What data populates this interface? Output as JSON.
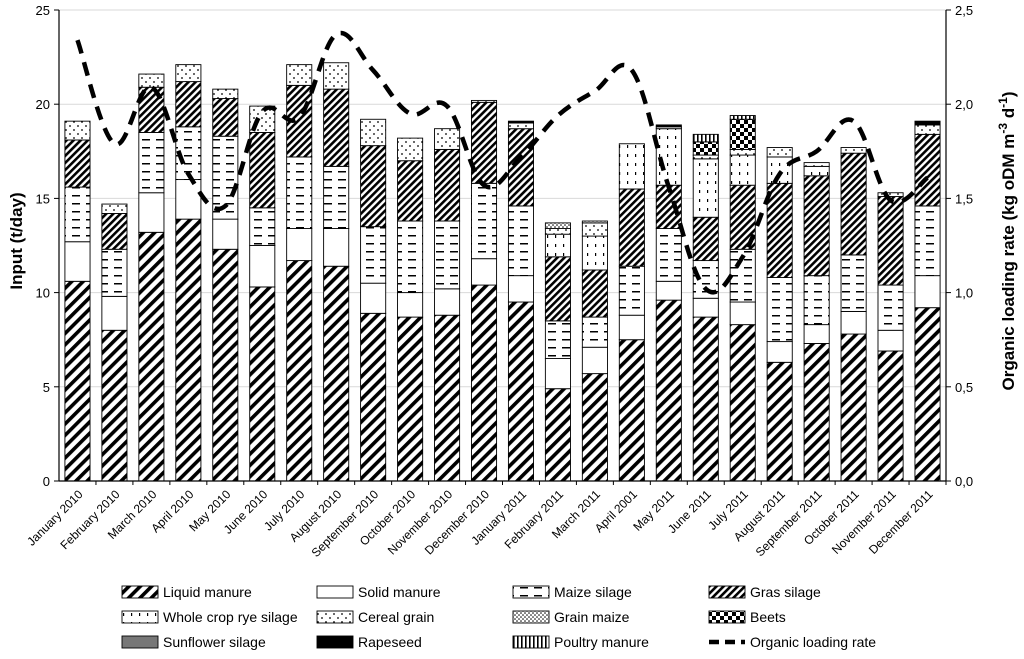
{
  "chart_data": {
    "type": "bar",
    "stacked": true,
    "categories": [
      "January 2010",
      "February 2010",
      "March 2010",
      "April 2010",
      "May 2010",
      "June 2010",
      "July 2010",
      "August 2010",
      "September 2010",
      "October 2010",
      "November 2010",
      "December 2010",
      "January 2011",
      "February 2011",
      "March 2011",
      "April 2001",
      "May 2011",
      "June 2011",
      "July 2011",
      "August 2011",
      "September 2011",
      "October 2011",
      "November 2011",
      "December 2011"
    ],
    "ylabel": "Input (t/day)",
    "ylim": [
      0,
      25
    ],
    "yticks": [
      "0",
      "5",
      "10",
      "15",
      "20",
      "25"
    ],
    "y2label": "Organic loading rate (kg oDM m⁻³ d⁻¹)",
    "y2label_main": "Organic loading rate (kg oDM m",
    "y2label_exp1": "-3",
    "y2label_mid": " d",
    "y2label_exp2": "-1",
    "y2label_end": ")",
    "y2lim": [
      0,
      2.5
    ],
    "y2ticks": [
      "0,0",
      "0,5",
      "1,0",
      "1,5",
      "2,0",
      "2,5"
    ],
    "series": [
      {
        "name": "Liquid manure",
        "pattern": "liquid",
        "values": [
          10.6,
          8.0,
          13.2,
          13.9,
          12.3,
          10.3,
          11.7,
          11.4,
          8.9,
          8.7,
          8.8,
          10.4,
          9.5,
          4.9,
          5.7,
          7.5,
          9.6,
          8.7,
          8.3,
          6.3,
          7.3,
          7.8,
          6.9,
          9.2
        ]
      },
      {
        "name": "Solid manure",
        "pattern": "solid",
        "values": [
          2.1,
          1.8,
          2.1,
          2.1,
          1.6,
          2.2,
          1.7,
          2.0,
          1.6,
          1.3,
          1.4,
          1.4,
          1.4,
          1.6,
          1.4,
          1.3,
          1.0,
          1.0,
          1.2,
          1.1,
          1.0,
          1.2,
          1.1,
          1.7
        ]
      },
      {
        "name": "Maize silage",
        "pattern": "maize",
        "values": [
          2.9,
          2.5,
          3.2,
          2.8,
          4.4,
          2.0,
          3.8,
          3.3,
          3.0,
          3.8,
          3.6,
          4.0,
          3.7,
          2.0,
          1.6,
          2.6,
          2.8,
          2.0,
          2.8,
          3.4,
          2.6,
          3.0,
          2.4,
          3.7
        ]
      },
      {
        "name": "Gras silage",
        "pattern": "gras",
        "values": [
          2.5,
          1.9,
          2.4,
          2.4,
          2.0,
          4.0,
          3.8,
          4.1,
          4.3,
          3.2,
          3.8,
          4.3,
          4.1,
          3.4,
          2.5,
          4.1,
          2.3,
          2.3,
          3.4,
          5.0,
          5.3,
          5.4,
          4.7,
          3.8
        ]
      },
      {
        "name": "Whole crop rye silage",
        "pattern": "rye",
        "values": [
          0,
          0,
          0,
          0,
          0,
          0,
          0,
          0,
          0,
          0,
          0,
          0,
          0,
          1.2,
          1.8,
          2.4,
          3.0,
          3.1,
          1.6,
          1.4,
          0.5,
          0,
          0,
          0
        ]
      },
      {
        "name": "Cereal grain",
        "pattern": "grain",
        "values": [
          1.0,
          0.5,
          0.7,
          0.9,
          0.5,
          1.4,
          1.1,
          1.4,
          1.4,
          1.2,
          1.1,
          0.1,
          0.3,
          0.3,
          0.7,
          0,
          0.1,
          0.2,
          0.3,
          0.5,
          0.2,
          0.3,
          0.2,
          0.5
        ]
      },
      {
        "name": "Grain maize",
        "pattern": "grainmaize",
        "values": [
          0,
          0,
          0,
          0,
          0,
          0,
          0,
          0,
          0,
          0,
          0,
          0,
          0,
          0.3,
          0.1,
          0,
          0,
          0,
          0,
          0,
          0,
          0,
          0,
          0
        ]
      },
      {
        "name": "Beets",
        "pattern": "beets",
        "values": [
          0,
          0,
          0,
          0,
          0,
          0,
          0,
          0,
          0,
          0,
          0,
          0,
          0,
          0,
          0,
          0,
          0,
          0.7,
          1.6,
          0,
          0,
          0,
          0,
          0
        ]
      },
      {
        "name": "Sunflower silage",
        "pattern": "sunflower",
        "values": [
          0,
          0,
          0,
          0,
          0,
          0,
          0,
          0,
          0,
          0,
          0,
          0,
          0,
          0,
          0,
          0,
          0,
          0,
          0,
          0,
          0,
          0,
          0,
          0
        ]
      },
      {
        "name": "Rapeseed",
        "pattern": "rapeseed",
        "values": [
          0,
          0,
          0,
          0,
          0,
          0,
          0,
          0,
          0,
          0,
          0,
          0,
          0.1,
          0,
          0,
          0,
          0.1,
          0,
          0,
          0,
          0,
          0,
          0,
          0.2
        ]
      },
      {
        "name": "Poultry manure",
        "pattern": "poultry",
        "values": [
          0,
          0,
          0,
          0,
          0,
          0,
          0,
          0,
          0,
          0,
          0,
          0,
          0,
          0,
          0,
          0,
          0,
          0.4,
          0.2,
          0,
          0,
          0,
          0,
          0
        ]
      }
    ],
    "line": {
      "name": "Organic loading rate",
      "axis": "y2",
      "values": [
        2.34,
        1.79,
        2.09,
        1.63,
        1.46,
        1.96,
        1.93,
        2.37,
        2.18,
        1.95,
        1.99,
        1.57,
        1.72,
        1.94,
        2.07,
        2.18,
        1.56,
        1.02,
        1.19,
        1.63,
        1.75,
        1.91,
        1.49,
        1.61
      ]
    },
    "legend": {
      "placement": "bottom",
      "items": [
        {
          "label": "Liquid manure",
          "pattern": "liquid"
        },
        {
          "label": "Solid manure",
          "pattern": "solid"
        },
        {
          "label": "Maize silage",
          "pattern": "maize"
        },
        {
          "label": "Gras silage",
          "pattern": "gras"
        },
        {
          "label": "Whole crop rye silage",
          "pattern": "rye"
        },
        {
          "label": "Cereal grain",
          "pattern": "grain"
        },
        {
          "label": "Grain maize",
          "pattern": "grainmaize"
        },
        {
          "label": "Beets",
          "pattern": "beets"
        },
        {
          "label": "Sunflower silage",
          "pattern": "sunflower"
        },
        {
          "label": "Rapeseed",
          "pattern": "rapeseed"
        },
        {
          "label": "Poultry manure",
          "pattern": "poultry"
        },
        {
          "label": "Organic loading rate",
          "pattern": "line"
        }
      ]
    },
    "colors": {
      "stroke": "#000000",
      "background": "#ffffff",
      "sunflower": "#777777",
      "rapeseed": "#000000"
    }
  }
}
